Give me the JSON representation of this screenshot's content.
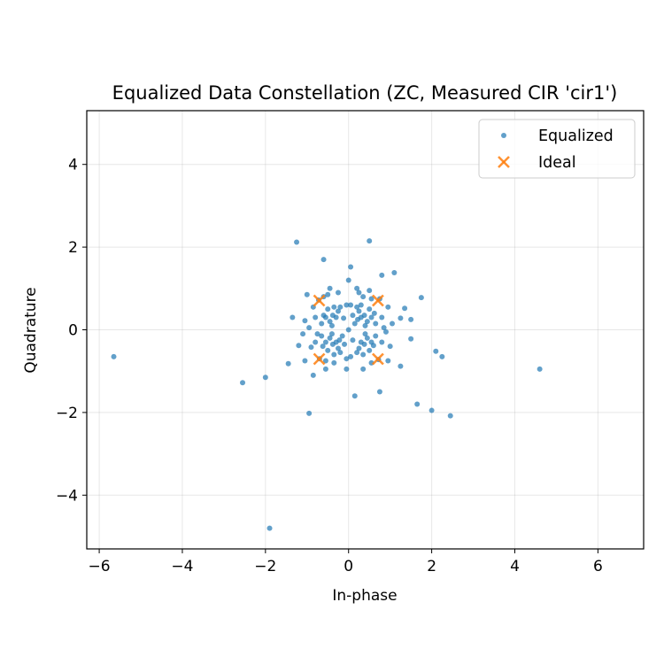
{
  "chart_data": {
    "type": "scatter",
    "title": "Equalized Data Constellation (ZC, Measured CIR 'cir1')",
    "xlabel": "In-phase",
    "ylabel": "Quadrature",
    "xlim": [
      -6.3,
      7.1
    ],
    "ylim": [
      -5.3,
      5.3
    ],
    "xticks": [
      -6,
      -4,
      -2,
      0,
      2,
      4,
      6
    ],
    "yticks": [
      -4,
      -2,
      0,
      2,
      4
    ],
    "xtick_labels": [
      "−6",
      "−4",
      "−2",
      "0",
      "2",
      "4",
      "6"
    ],
    "ytick_labels": [
      "−4",
      "−2",
      "0",
      "2",
      "4"
    ],
    "grid": true,
    "legend_position": "top-right",
    "series": [
      {
        "name": "Equalized",
        "marker": "dot",
        "color": "#1f77b4",
        "points": [
          [
            -5.65,
            -0.65
          ],
          [
            -2.55,
            -1.28
          ],
          [
            -2.0,
            -1.15
          ],
          [
            -1.9,
            -4.8
          ],
          [
            -1.25,
            2.12
          ],
          [
            -1.05,
            -0.75
          ],
          [
            -0.95,
            -2.02
          ],
          [
            -0.85,
            -1.1
          ],
          [
            -0.6,
            1.7
          ],
          [
            0.5,
            2.15
          ],
          [
            0.05,
            1.52
          ],
          [
            0.0,
            1.2
          ],
          [
            0.15,
            -1.6
          ],
          [
            0.75,
            -1.5
          ],
          [
            1.1,
            1.38
          ],
          [
            0.8,
            1.32
          ],
          [
            1.25,
            -0.88
          ],
          [
            1.65,
            -1.8
          ],
          [
            2.0,
            -1.95
          ],
          [
            2.45,
            -2.08
          ],
          [
            2.1,
            -0.52
          ],
          [
            2.25,
            -0.65
          ],
          [
            4.6,
            -0.95
          ],
          [
            1.75,
            0.78
          ],
          [
            1.5,
            -0.22
          ],
          [
            1.5,
            0.25
          ],
          [
            1.35,
            0.52
          ],
          [
            1.25,
            0.28
          ],
          [
            -1.35,
            0.3
          ],
          [
            -1.45,
            -0.82
          ],
          [
            -1.2,
            -0.38
          ],
          [
            -1.0,
            0.85
          ],
          [
            -1.05,
            0.22
          ],
          [
            -0.85,
            0.55
          ],
          [
            -0.9,
            -0.42
          ],
          [
            0.95,
            -0.75
          ],
          [
            0.95,
            0.55
          ],
          [
            -0.75,
            -0.1
          ],
          [
            0.85,
            0.05
          ],
          [
            -0.45,
            1.0
          ],
          [
            0.35,
            -0.95
          ],
          [
            0.5,
            0.95
          ],
          [
            -0.05,
            -0.95
          ],
          [
            0.75,
            0.75
          ],
          [
            -0.72,
            0.72
          ],
          [
            -0.7,
            -0.7
          ],
          [
            0.72,
            -0.72
          ],
          [
            -0.5,
            0.85
          ],
          [
            -0.55,
            -0.95
          ],
          [
            0.25,
            0.9
          ],
          [
            -0.25,
            0.9
          ],
          [
            0.3,
            0.6
          ],
          [
            -0.35,
            0.55
          ],
          [
            0.35,
            -0.6
          ],
          [
            -0.35,
            -0.6
          ],
          [
            -0.6,
            0.35
          ],
          [
            0.62,
            0.4
          ],
          [
            0.6,
            -0.38
          ],
          [
            -0.62,
            -0.4
          ],
          [
            0.0,
            0.0
          ],
          [
            0.1,
            0.35
          ],
          [
            -0.1,
            -0.35
          ],
          [
            0.1,
            -0.25
          ],
          [
            -0.12,
            0.28
          ],
          [
            0.22,
            0.25
          ],
          [
            -0.22,
            -0.25
          ],
          [
            0.38,
            0.35
          ],
          [
            -0.38,
            0.35
          ],
          [
            0.38,
            -0.35
          ],
          [
            -0.38,
            -0.35
          ],
          [
            0.45,
            0.2
          ],
          [
            -0.45,
            0.2
          ],
          [
            0.45,
            -0.2
          ],
          [
            -0.45,
            -0.2
          ],
          [
            0.25,
            0.45
          ],
          [
            -0.25,
            0.45
          ],
          [
            0.25,
            -0.45
          ],
          [
            -0.25,
            -0.45
          ],
          [
            0.5,
            0.5
          ],
          [
            -0.5,
            0.5
          ],
          [
            0.5,
            -0.5
          ],
          [
            -0.5,
            -0.5
          ],
          [
            0.15,
            0.15
          ],
          [
            -0.15,
            -0.15
          ],
          [
            0.4,
            0.1
          ],
          [
            -0.4,
            0.1
          ],
          [
            0.4,
            -0.1
          ],
          [
            -0.4,
            -0.1
          ],
          [
            0.3,
            0.3
          ],
          [
            -0.3,
            0.3
          ],
          [
            0.3,
            -0.3
          ],
          [
            -0.3,
            -0.3
          ],
          [
            0.55,
            0.3
          ],
          [
            -0.55,
            0.3
          ],
          [
            0.55,
            -0.3
          ],
          [
            -0.55,
            -0.3
          ],
          [
            0.2,
            0.55
          ],
          [
            -0.2,
            0.55
          ],
          [
            0.2,
            -0.55
          ],
          [
            -0.2,
            -0.55
          ],
          [
            0.65,
            0.15
          ],
          [
            -0.65,
            0.15
          ],
          [
            0.65,
            -0.15
          ],
          [
            -0.65,
            -0.15
          ],
          [
            0.05,
            0.6
          ],
          [
            -0.05,
            0.6
          ],
          [
            0.05,
            -0.65
          ],
          [
            -0.05,
            -0.7
          ],
          [
            0.8,
            0.3
          ],
          [
            -0.8,
            0.3
          ],
          [
            0.8,
            -0.3
          ],
          [
            -0.8,
            -0.3
          ],
          [
            0.9,
            -0.05
          ],
          [
            -0.95,
            0.05
          ],
          [
            0.35,
            0.8
          ],
          [
            -0.35,
            -0.8
          ],
          [
            0.55,
            0.75
          ],
          [
            -0.6,
            0.8
          ],
          [
            0.55,
            -0.8
          ],
          [
            -0.55,
            -0.75
          ],
          [
            1.05,
            0.15
          ],
          [
            1.0,
            -0.4
          ],
          [
            -1.1,
            -0.1
          ],
          [
            0.2,
            1.0
          ]
        ]
      },
      {
        "name": "Ideal",
        "marker": "x",
        "color": "#ff7f0e",
        "points": [
          [
            -0.707,
            0.707
          ],
          [
            0.707,
            0.707
          ],
          [
            -0.707,
            -0.707
          ],
          [
            0.707,
            -0.707
          ]
        ]
      }
    ]
  }
}
